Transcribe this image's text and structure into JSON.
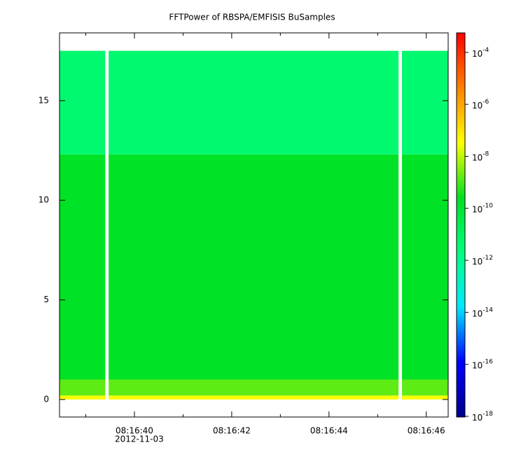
{
  "chart_data": {
    "type": "spectrogram",
    "title": "FFTPower of RBSPA/EMFISIS  BuSamples",
    "xlim": [
      "08:16:38.46",
      "08:16:46.45"
    ],
    "xticks": [
      "08:16:40",
      "08:16:42",
      "08:16:44",
      "08:16:46"
    ],
    "xminorticks": [
      "08:16:39",
      "08:16:41",
      "08:16:43",
      "08:16:45"
    ],
    "date_label": "2012-11-03",
    "ylim": [
      -0.88,
      18.4
    ],
    "yticks": [
      0,
      5,
      10,
      15
    ],
    "time_range": [
      "08:16:38.46",
      "08:16:46.45"
    ],
    "gaps": [
      [
        "08:16:39.40",
        "08:16:39.47"
      ],
      [
        "08:16:45.43",
        "08:16:45.50"
      ]
    ],
    "bands": {
      "edges": [
        0,
        0.2,
        1,
        12.3,
        17.5
      ],
      "values": [
        3e-08,
        1.6e-09,
        2e-10,
        5e-12
      ]
    },
    "zlog": true,
    "zlim": [
      9.4e-19,
      0.00056
    ],
    "zticks": [
      {
        "value": 1e-18,
        "base": "10",
        "exponent": "-18"
      },
      {
        "value": 1e-16,
        "base": "10",
        "exponent": "-16"
      },
      {
        "value": 1e-14,
        "base": "10",
        "exponent": "-14"
      },
      {
        "value": 1e-12,
        "base": "10",
        "exponent": "-12"
      },
      {
        "value": 1e-10,
        "base": "10",
        "exponent": "-10"
      },
      {
        "value": 1e-08,
        "base": "10",
        "exponent": "-8"
      },
      {
        "value": 1e-06,
        "base": "10",
        "exponent": "-6"
      },
      {
        "value": 0.0001,
        "base": "10",
        "exponent": "-4"
      }
    ],
    "colormap": [
      "#00008c",
      "#0000ff",
      "#00e8ff",
      "#00ff80",
      "#00e020",
      "#ffff00",
      "#ff8000",
      "#ff0000"
    ]
  }
}
